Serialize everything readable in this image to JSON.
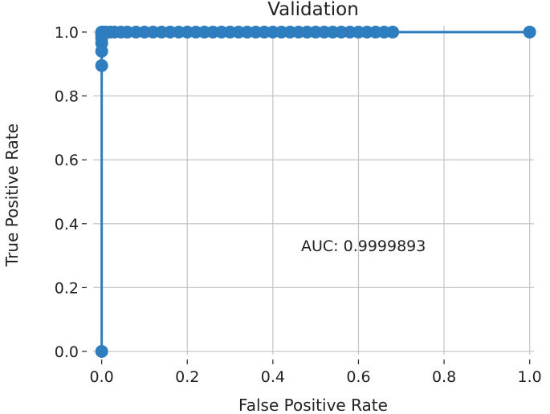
{
  "chart_data": {
    "type": "line",
    "title": "Validation",
    "xlabel": "False Positive Rate",
    "ylabel": "True Positive Rate",
    "xlim": [
      -0.02,
      1.01
    ],
    "ylim": [
      -0.01,
      1.02
    ],
    "x_ticks": [
      "0.0",
      "0.2",
      "0.4",
      "0.6",
      "0.8",
      "1.0"
    ],
    "y_ticks": [
      "0.0",
      "0.2",
      "0.4",
      "0.6",
      "0.8",
      "1.0"
    ],
    "grid": true,
    "annotation": "AUC: 0.9999893",
    "color": "#2e7ebf",
    "series": [
      {
        "x": [
          0.0,
          0.0,
          0.0,
          0.0,
          0.0,
          0.0,
          0.0,
          0.0,
          0.002,
          0.005,
          0.01,
          0.02,
          0.03,
          0.045,
          0.06,
          0.08,
          0.1,
          0.12,
          0.14,
          0.16,
          0.18,
          0.2,
          0.22,
          0.24,
          0.26,
          0.28,
          0.3,
          0.32,
          0.34,
          0.36,
          0.38,
          0.4,
          0.42,
          0.44,
          0.46,
          0.48,
          0.5,
          0.52,
          0.54,
          0.56,
          0.58,
          0.6,
          0.62,
          0.64,
          0.66,
          0.68,
          1.0
        ],
        "y": [
          0.0,
          0.895,
          0.94,
          0.965,
          0.98,
          0.99,
          0.995,
          1.0,
          1.0,
          1.0,
          1.0,
          1.0,
          1.0,
          1.0,
          1.0,
          1.0,
          1.0,
          1.0,
          1.0,
          1.0,
          1.0,
          1.0,
          1.0,
          1.0,
          1.0,
          1.0,
          1.0,
          1.0,
          1.0,
          1.0,
          1.0,
          1.0,
          1.0,
          1.0,
          1.0,
          1.0,
          1.0,
          1.0,
          1.0,
          1.0,
          1.0,
          1.0,
          1.0,
          1.0,
          1.0,
          1.0,
          1.0
        ]
      }
    ]
  }
}
